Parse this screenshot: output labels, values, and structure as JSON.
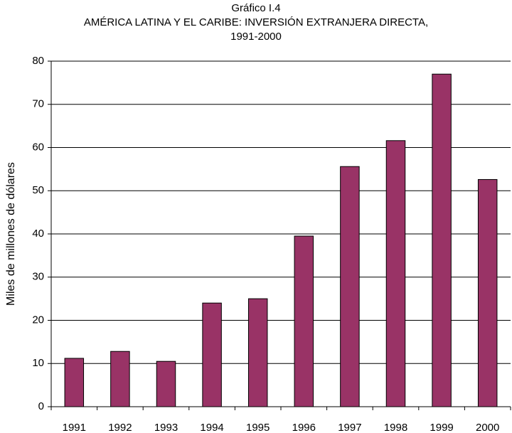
{
  "chart_data": {
    "type": "bar",
    "title": [
      "Gráfico I.4",
      "AMÉRICA LATINA Y EL CARIBE: INVERSIÓN EXTRANJERA DIRECTA,",
      "1991-2000"
    ],
    "y_label": "Miles de millones de dólares",
    "categories": [
      "1991",
      "1992",
      "1993",
      "1994",
      "1995",
      "1996",
      "1997",
      "1998",
      "1999",
      "2000"
    ],
    "values": [
      11.2,
      12.8,
      10.5,
      24.0,
      25.0,
      39.5,
      55.6,
      61.6,
      77.0,
      52.6
    ],
    "color": "#993366",
    "ylim": [
      0,
      80
    ],
    "yticks": [
      0,
      10,
      20,
      30,
      40,
      50,
      60,
      70,
      80
    ],
    "grid": true
  }
}
